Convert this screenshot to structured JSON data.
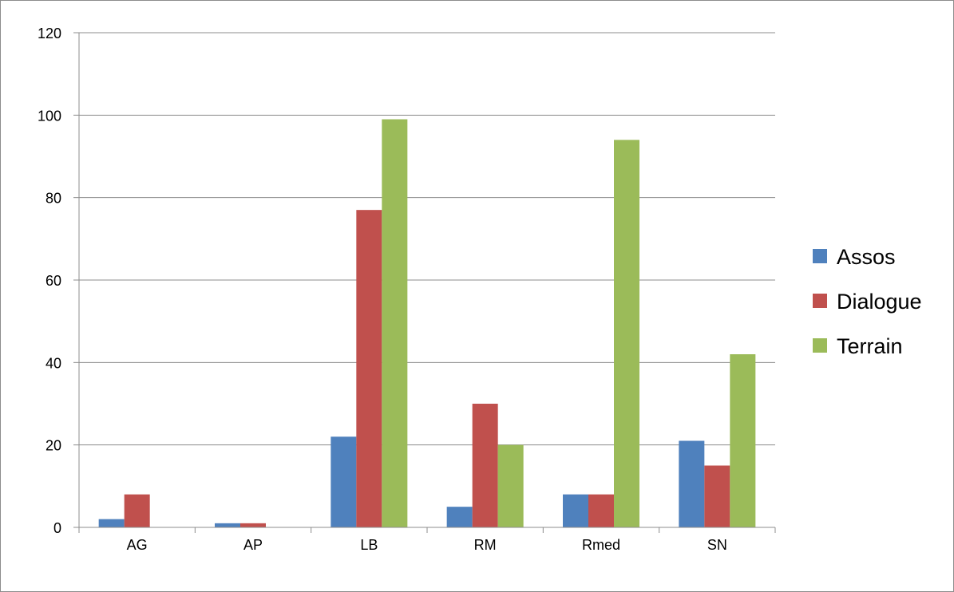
{
  "chart_data": {
    "type": "bar",
    "categories": [
      "AG",
      "AP",
      "LB",
      "RM",
      "Rmed",
      "SN"
    ],
    "series": [
      {
        "name": "Assos",
        "values": [
          2,
          1,
          22,
          5,
          8,
          21
        ],
        "color": "#4F81BD"
      },
      {
        "name": "Dialogue",
        "values": [
          8,
          1,
          77,
          30,
          8,
          15
        ],
        "color": "#C0504D"
      },
      {
        "name": "Terrain",
        "values": [
          0,
          0,
          99,
          20,
          94,
          42
        ],
        "color": "#9BBB59"
      }
    ],
    "ylim": [
      0,
      120
    ],
    "yticks": [
      0,
      20,
      40,
      60,
      80,
      100,
      120
    ],
    "grid": true,
    "legend_position": "right"
  }
}
